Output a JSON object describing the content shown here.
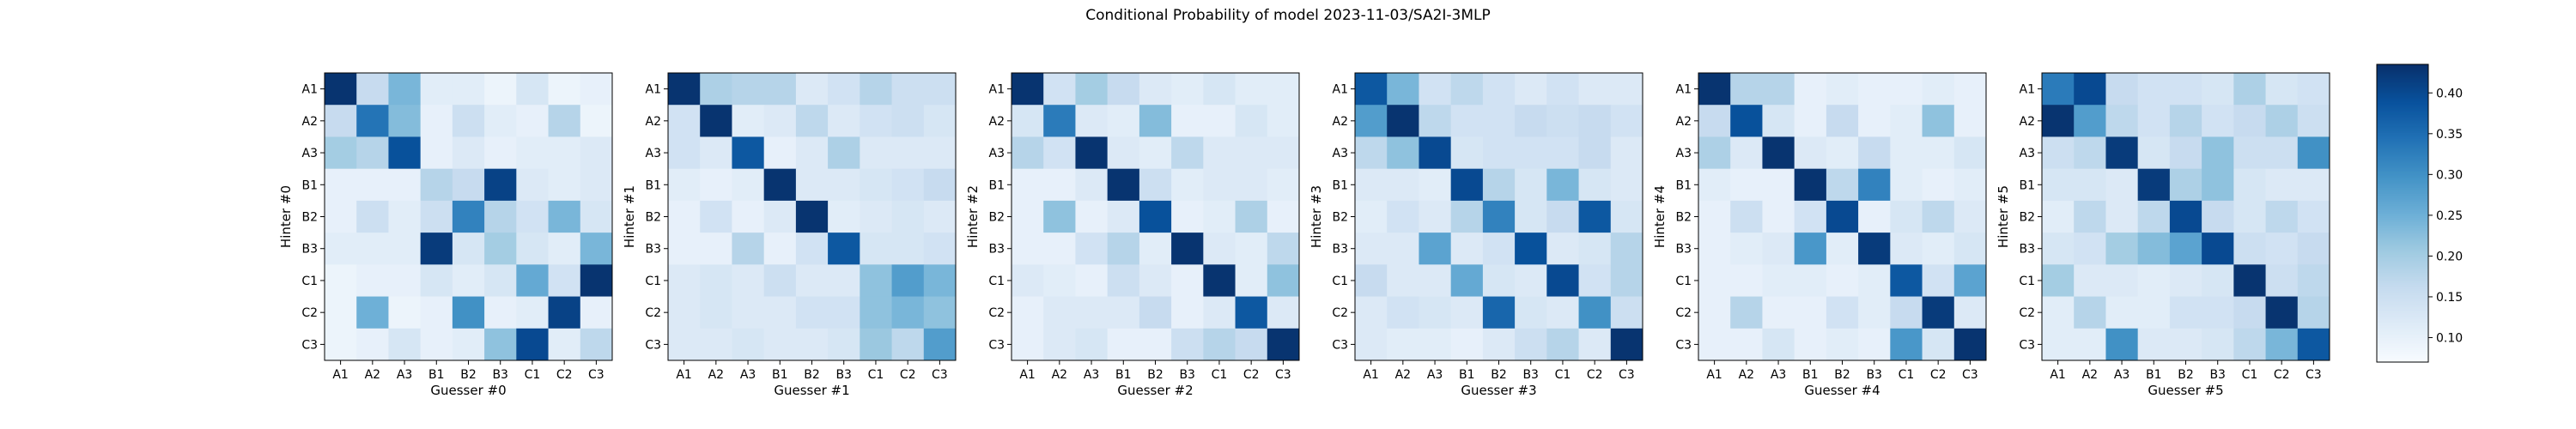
{
  "title": "Conditional Probability of model 2023-11-03/SA2I-3MLP",
  "chart_data": {
    "type": "heatmap",
    "title": "Conditional Probability of model 2023-11-03/SA2I-3MLP",
    "categories": [
      "A1",
      "A2",
      "A3",
      "B1",
      "B2",
      "B3",
      "C1",
      "C2",
      "C3"
    ],
    "colormap": "Blues",
    "colorbar": {
      "min": 0.07,
      "max": 0.435,
      "ticks": [
        0.1,
        0.15,
        0.2,
        0.25,
        0.3,
        0.35,
        0.4
      ],
      "tick_labels": [
        "0.10",
        "0.15",
        "0.20",
        "0.25",
        "0.30",
        "0.35",
        "0.40"
      ]
    },
    "panels": [
      {
        "ylabel": "Hinter #0",
        "xlabel": "Guesser #0",
        "values": [
          [
            0.43,
            0.16,
            0.24,
            0.11,
            0.11,
            0.09,
            0.13,
            0.09,
            0.1
          ],
          [
            0.16,
            0.34,
            0.23,
            0.1,
            0.15,
            0.11,
            0.1,
            0.18,
            0.09
          ],
          [
            0.2,
            0.18,
            0.39,
            0.1,
            0.12,
            0.1,
            0.11,
            0.11,
            0.12
          ],
          [
            0.1,
            0.1,
            0.1,
            0.18,
            0.16,
            0.41,
            0.12,
            0.11,
            0.12
          ],
          [
            0.1,
            0.15,
            0.11,
            0.15,
            0.32,
            0.18,
            0.14,
            0.24,
            0.13
          ],
          [
            0.11,
            0.11,
            0.11,
            0.42,
            0.13,
            0.2,
            0.13,
            0.11,
            0.24
          ],
          [
            0.09,
            0.1,
            0.1,
            0.13,
            0.11,
            0.13,
            0.26,
            0.14,
            0.43
          ],
          [
            0.09,
            0.25,
            0.09,
            0.1,
            0.3,
            0.1,
            0.11,
            0.41,
            0.1
          ],
          [
            0.09,
            0.1,
            0.13,
            0.1,
            0.11,
            0.22,
            0.4,
            0.11,
            0.17
          ]
        ]
      },
      {
        "ylabel": "Hinter #1",
        "xlabel": "Guesser #1",
        "values": [
          [
            0.43,
            0.19,
            0.18,
            0.18,
            0.12,
            0.14,
            0.18,
            0.15,
            0.15
          ],
          [
            0.14,
            0.43,
            0.11,
            0.12,
            0.17,
            0.12,
            0.14,
            0.15,
            0.13
          ],
          [
            0.14,
            0.12,
            0.38,
            0.1,
            0.12,
            0.19,
            0.12,
            0.12,
            0.12
          ],
          [
            0.11,
            0.1,
            0.11,
            0.43,
            0.12,
            0.12,
            0.13,
            0.14,
            0.16
          ],
          [
            0.1,
            0.14,
            0.1,
            0.12,
            0.43,
            0.11,
            0.12,
            0.13,
            0.12
          ],
          [
            0.1,
            0.1,
            0.18,
            0.1,
            0.14,
            0.38,
            0.13,
            0.13,
            0.14
          ],
          [
            0.12,
            0.13,
            0.12,
            0.15,
            0.12,
            0.12,
            0.22,
            0.28,
            0.24
          ],
          [
            0.12,
            0.13,
            0.12,
            0.12,
            0.14,
            0.14,
            0.22,
            0.24,
            0.22
          ],
          [
            0.12,
            0.12,
            0.13,
            0.12,
            0.12,
            0.13,
            0.21,
            0.17,
            0.28
          ]
        ]
      },
      {
        "ylabel": "Hinter #2",
        "xlabel": "Guesser #2",
        "values": [
          [
            0.43,
            0.14,
            0.2,
            0.16,
            0.12,
            0.11,
            0.13,
            0.11,
            0.11
          ],
          [
            0.13,
            0.33,
            0.12,
            0.11,
            0.23,
            0.1,
            0.1,
            0.13,
            0.11
          ],
          [
            0.18,
            0.14,
            0.43,
            0.12,
            0.11,
            0.17,
            0.12,
            0.12,
            0.12
          ],
          [
            0.1,
            0.1,
            0.12,
            0.43,
            0.15,
            0.11,
            0.12,
            0.12,
            0.11
          ],
          [
            0.1,
            0.22,
            0.1,
            0.12,
            0.39,
            0.1,
            0.11,
            0.19,
            0.1
          ],
          [
            0.1,
            0.1,
            0.14,
            0.18,
            0.11,
            0.43,
            0.12,
            0.11,
            0.17
          ],
          [
            0.12,
            0.11,
            0.1,
            0.15,
            0.12,
            0.1,
            0.43,
            0.11,
            0.22
          ],
          [
            0.1,
            0.12,
            0.12,
            0.12,
            0.16,
            0.1,
            0.12,
            0.38,
            0.12
          ],
          [
            0.1,
            0.12,
            0.13,
            0.1,
            0.1,
            0.15,
            0.18,
            0.16,
            0.43
          ]
        ]
      },
      {
        "ylabel": "Hinter #3",
        "xlabel": "Guesser #3",
        "values": [
          [
            0.38,
            0.24,
            0.14,
            0.17,
            0.14,
            0.12,
            0.14,
            0.12,
            0.12
          ],
          [
            0.28,
            0.43,
            0.17,
            0.14,
            0.14,
            0.16,
            0.15,
            0.16,
            0.14
          ],
          [
            0.17,
            0.22,
            0.4,
            0.13,
            0.14,
            0.14,
            0.14,
            0.16,
            0.12
          ],
          [
            0.12,
            0.12,
            0.11,
            0.4,
            0.18,
            0.13,
            0.24,
            0.13,
            0.12
          ],
          [
            0.11,
            0.14,
            0.12,
            0.18,
            0.32,
            0.13,
            0.16,
            0.38,
            0.13
          ],
          [
            0.12,
            0.12,
            0.27,
            0.12,
            0.14,
            0.39,
            0.12,
            0.13,
            0.18
          ],
          [
            0.16,
            0.12,
            0.12,
            0.26,
            0.13,
            0.12,
            0.4,
            0.14,
            0.18
          ],
          [
            0.12,
            0.14,
            0.13,
            0.12,
            0.36,
            0.13,
            0.12,
            0.3,
            0.15
          ],
          [
            0.12,
            0.11,
            0.11,
            0.1,
            0.12,
            0.15,
            0.18,
            0.12,
            0.43
          ]
        ]
      },
      {
        "ylabel": "Hinter #4",
        "xlabel": "Guesser #4",
        "values": [
          [
            0.43,
            0.18,
            0.18,
            0.1,
            0.11,
            0.1,
            0.1,
            0.11,
            0.1
          ],
          [
            0.16,
            0.39,
            0.13,
            0.1,
            0.16,
            0.1,
            0.11,
            0.22,
            0.1
          ],
          [
            0.19,
            0.12,
            0.43,
            0.12,
            0.11,
            0.16,
            0.11,
            0.11,
            0.13
          ],
          [
            0.11,
            0.1,
            0.1,
            0.43,
            0.17,
            0.32,
            0.11,
            0.1,
            0.11
          ],
          [
            0.1,
            0.15,
            0.1,
            0.14,
            0.4,
            0.1,
            0.13,
            0.17,
            0.12
          ],
          [
            0.1,
            0.11,
            0.12,
            0.29,
            0.11,
            0.42,
            0.12,
            0.11,
            0.13
          ],
          [
            0.1,
            0.1,
            0.11,
            0.11,
            0.1,
            0.11,
            0.38,
            0.14,
            0.27
          ],
          [
            0.1,
            0.18,
            0.1,
            0.1,
            0.14,
            0.11,
            0.16,
            0.42,
            0.12
          ],
          [
            0.1,
            0.1,
            0.13,
            0.1,
            0.11,
            0.1,
            0.29,
            0.13,
            0.43
          ]
        ]
      },
      {
        "ylabel": "Hinter #5",
        "xlabel": "Guesser #5",
        "values": [
          [
            0.33,
            0.4,
            0.16,
            0.14,
            0.14,
            0.13,
            0.19,
            0.13,
            0.14
          ],
          [
            0.43,
            0.28,
            0.17,
            0.14,
            0.18,
            0.14,
            0.16,
            0.19,
            0.15
          ],
          [
            0.15,
            0.17,
            0.42,
            0.13,
            0.16,
            0.22,
            0.15,
            0.15,
            0.3
          ],
          [
            0.13,
            0.13,
            0.12,
            0.42,
            0.19,
            0.22,
            0.13,
            0.12,
            0.12
          ],
          [
            0.11,
            0.17,
            0.12,
            0.17,
            0.4,
            0.16,
            0.13,
            0.17,
            0.14
          ],
          [
            0.13,
            0.14,
            0.2,
            0.23,
            0.27,
            0.4,
            0.15,
            0.14,
            0.16
          ],
          [
            0.2,
            0.12,
            0.12,
            0.11,
            0.12,
            0.13,
            0.43,
            0.15,
            0.17
          ],
          [
            0.11,
            0.18,
            0.11,
            0.11,
            0.14,
            0.14,
            0.16,
            0.43,
            0.18
          ],
          [
            0.11,
            0.11,
            0.3,
            0.12,
            0.12,
            0.13,
            0.17,
            0.24,
            0.38
          ]
        ]
      }
    ]
  }
}
